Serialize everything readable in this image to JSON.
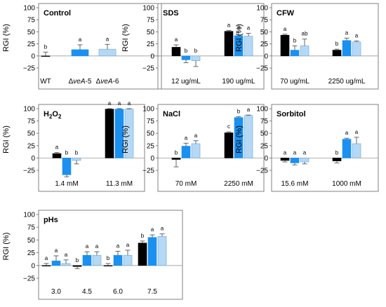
{
  "colors": {
    "wt": "#000000",
    "veA5": "#1a90f0",
    "veA6": "#b5d8f5",
    "frame": "#808080",
    "text": "#000000"
  },
  "chart_data": [
    {
      "type": "bar",
      "title": "Control",
      "title_sub": "",
      "ylabel": "RGI (%)",
      "ylim": [
        -25,
        100
      ],
      "yticks": [
        "100",
        "75",
        "50",
        "25",
        "0",
        "−25"
      ],
      "group_labels": [
        [
          "WT"
        ],
        [
          "Δ",
          "veA",
          "-5"
        ],
        [
          "Δ",
          "veA",
          "-6"
        ]
      ],
      "series": [
        "WT",
        "ΔveA-5",
        "ΔveA-6"
      ],
      "groups": [
        {
          "label": "WT",
          "values": [
            0
          ],
          "errors": [
            8
          ],
          "letters": [
            "b"
          ]
        },
        {
          "label": "ΔveA-5",
          "values": [
            13
          ],
          "errors": [
            10
          ],
          "letters": [
            "a"
          ]
        },
        {
          "label": "ΔveA-6",
          "values": [
            14
          ],
          "errors": [
            10
          ],
          "letters": [
            "a"
          ]
        }
      ]
    },
    {
      "type": "bar",
      "title": "SDS",
      "title_sub": "",
      "ylabel": "RGI (%)",
      "ylim": [
        -25,
        100
      ],
      "yticks": [
        "100",
        "75",
        "50",
        "25",
        "0",
        "−25"
      ],
      "group_labels": [
        [
          "12 ug/mL"
        ],
        [
          "190 ug/mL"
        ]
      ],
      "groups": [
        {
          "label": "12 ug/mL",
          "values": [
            18,
            -8,
            -10
          ],
          "errors": [
            5,
            6,
            12
          ],
          "letters": [
            "a",
            "b",
            "b"
          ]
        },
        {
          "label": "190 ug/mL",
          "values": [
            51,
            42,
            41
          ],
          "errors": [
            2,
            7,
            6
          ],
          "letters": [
            "a",
            "a",
            "a"
          ]
        }
      ]
    },
    {
      "type": "bar",
      "title": "CFW",
      "title_sub": "",
      "ylabel": "RGI (%)",
      "ylim": [
        -25,
        100
      ],
      "yticks": [
        "100",
        "75",
        "50",
        "25",
        "0",
        "−25"
      ],
      "group_labels": [
        [
          "70 ug/mL"
        ],
        [
          "2250 ug/mL"
        ]
      ],
      "groups": [
        {
          "label": "70 ug/mL",
          "values": [
            43,
            12,
            21
          ],
          "errors": [
            2,
            9,
            14
          ],
          "letters": [
            "a",
            "b",
            "ab"
          ]
        },
        {
          "label": "2250 ug/mL",
          "values": [
            12,
            32,
            29
          ],
          "errors": [
            2,
            5,
            2
          ],
          "letters": [
            "b",
            "a",
            "a"
          ]
        }
      ]
    },
    {
      "type": "bar",
      "title": "H",
      "title_sub": "2",
      "title_rest": "O",
      "title_sub2": "2",
      "ylabel": "RGI (%)",
      "ylim": [
        -25,
        100
      ],
      "yticks": [
        "100",
        "75",
        "50",
        "25",
        "0",
        "−25"
      ],
      "group_labels": [
        [
          "1.4 mM"
        ],
        [
          "11.3 mM"
        ]
      ],
      "groups": [
        {
          "label": "1.4 mM",
          "values": [
            9,
            -34,
            -5
          ],
          "errors": [
            2,
            4,
            7
          ],
          "letters": [
            "a",
            "b",
            "b"
          ]
        },
        {
          "label": "11.3 mM",
          "values": [
            99,
            99,
            99
          ],
          "errors": [
            1,
            1,
            1
          ],
          "letters": [
            "a",
            "a",
            "a"
          ]
        }
      ]
    },
    {
      "type": "bar",
      "title": "NaCl",
      "title_sub": "",
      "ylabel": "RGI (%)",
      "ylim": [
        -25,
        100
      ],
      "yticks": [
        "100",
        "75",
        "50",
        "25",
        "0",
        "−25"
      ],
      "group_labels": [
        [
          "70 mM"
        ],
        [
          "2250 mM"
        ]
      ],
      "groups": [
        {
          "label": "70 mM",
          "values": [
            -3,
            24,
            29
          ],
          "errors": [
            15,
            6,
            6
          ],
          "letters": [
            "b",
            "a",
            "a"
          ]
        },
        {
          "label": "2250 mM",
          "values": [
            51,
            82,
            86
          ],
          "errors": [
            2,
            2,
            1
          ],
          "letters": [
            "c",
            "b",
            "a"
          ]
        }
      ]
    },
    {
      "type": "bar",
      "title": "Sorbitol",
      "title_sub": "",
      "ylabel": "RGI (%)",
      "ylim": [
        -25,
        100
      ],
      "yticks": [
        "100",
        "75",
        "50",
        "25",
        "0",
        "−25"
      ],
      "group_labels": [
        [
          "15.6 mM"
        ],
        [
          "1000 mM"
        ]
      ],
      "groups": [
        {
          "label": "15.6 mM",
          "values": [
            -5,
            -10,
            -8
          ],
          "errors": [
            3,
            4,
            4
          ],
          "letters": [
            "a",
            "a",
            "a"
          ]
        },
        {
          "label": "1000 mM",
          "values": [
            -6,
            38,
            29
          ],
          "errors": [
            4,
            2,
            13
          ],
          "letters": [
            "b",
            "a",
            "a"
          ]
        }
      ]
    },
    {
      "type": "bar",
      "title": "pHs",
      "title_sub": "",
      "ylabel": "RGI (%)",
      "ylim": [
        -25,
        100
      ],
      "yticks": [
        "100",
        "75",
        "50",
        "25",
        "0",
        "−25"
      ],
      "group_labels": [
        [
          "3.0"
        ],
        [
          "4.5"
        ],
        [
          "6.0"
        ],
        [
          "7.5"
        ]
      ],
      "groups": [
        {
          "label": "3.0",
          "values": [
            0,
            9,
            4
          ],
          "errors": [
            4,
            10,
            7
          ],
          "letters": [
            "a",
            "a",
            "a"
          ]
        },
        {
          "label": "4.5",
          "values": [
            -2,
            20,
            20
          ],
          "errors": [
            4,
            7,
            7
          ],
          "letters": [
            "b",
            "a",
            "a"
          ]
        },
        {
          "label": "6.0",
          "values": [
            0,
            20,
            20
          ],
          "errors": [
            4,
            8,
            10
          ],
          "letters": [
            "b",
            "a",
            "a"
          ]
        },
        {
          "label": "7.5",
          "values": [
            44,
            55,
            57
          ],
          "errors": [
            4,
            5,
            5
          ],
          "letters": [
            "b",
            "a",
            "a"
          ]
        }
      ]
    }
  ]
}
